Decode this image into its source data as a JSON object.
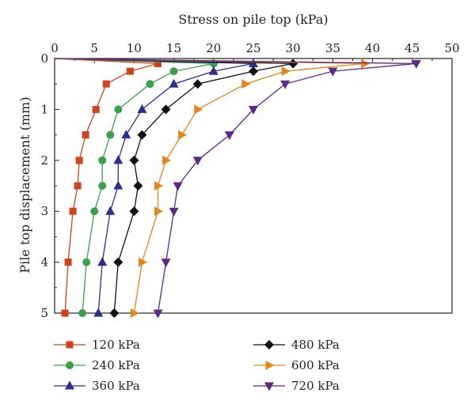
{
  "chart_data": {
    "type": "line",
    "title": "",
    "xlabel": "Stress on pile top (kPa)",
    "ylabel": "Pile top displacement (mm)",
    "xlim": [
      0,
      50
    ],
    "ylim": [
      0,
      5
    ],
    "x_axis_position": "top",
    "y_inverted": true,
    "x_ticks": [
      0,
      5,
      10,
      15,
      20,
      25,
      30,
      35,
      40,
      45,
      50
    ],
    "y_ticks": [
      0,
      1,
      2,
      3,
      4,
      5
    ],
    "grid": false,
    "legend_placement": "bottom, two columns",
    "series": [
      {
        "name": "120 kPa",
        "color": "#d4401b",
        "marker": "square",
        "points": [
          [
            0,
            0
          ],
          [
            13,
            0.1
          ],
          [
            9.5,
            0.25
          ],
          [
            6.5,
            0.5
          ],
          [
            5.2,
            1.0
          ],
          [
            3.9,
            1.5
          ],
          [
            3.1,
            2.0
          ],
          [
            2.9,
            2.5
          ],
          [
            2.3,
            3.0
          ],
          [
            1.7,
            4.0
          ],
          [
            1.3,
            5.0
          ]
        ]
      },
      {
        "name": "240 kPa",
        "color": "#3aa14a",
        "marker": "circle",
        "points": [
          [
            0,
            0
          ],
          [
            20,
            0.1
          ],
          [
            15,
            0.25
          ],
          [
            12,
            0.5
          ],
          [
            8,
            1.0
          ],
          [
            7,
            1.5
          ],
          [
            6,
            2.0
          ],
          [
            6,
            2.5
          ],
          [
            5,
            3.0
          ],
          [
            4,
            4.0
          ],
          [
            3.5,
            5.0
          ]
        ]
      },
      {
        "name": "360 kPa",
        "color": "#2c2e8f",
        "marker": "triangle-up",
        "points": [
          [
            0,
            0
          ],
          [
            25,
            0.1
          ],
          [
            20,
            0.25
          ],
          [
            15,
            0.5
          ],
          [
            11,
            1.0
          ],
          [
            9,
            1.5
          ],
          [
            8,
            2.0
          ],
          [
            8,
            2.5
          ],
          [
            7,
            3.0
          ],
          [
            6,
            4.0
          ],
          [
            5.5,
            5.0
          ]
        ]
      },
      {
        "name": "480 kPa",
        "color": "#111111",
        "marker": "diamond",
        "points": [
          [
            0,
            0
          ],
          [
            30,
            0.1
          ],
          [
            25,
            0.25
          ],
          [
            18,
            0.5
          ],
          [
            14,
            1.0
          ],
          [
            11,
            1.5
          ],
          [
            10,
            2.0
          ],
          [
            10.5,
            2.5
          ],
          [
            10,
            3.0
          ],
          [
            8,
            4.0
          ],
          [
            7.5,
            5.0
          ]
        ]
      },
      {
        "name": "600 kPa",
        "color": "#e8851a",
        "marker": "triangle-right",
        "points": [
          [
            0,
            0
          ],
          [
            39,
            0.1
          ],
          [
            29,
            0.25
          ],
          [
            24,
            0.5
          ],
          [
            18,
            1.0
          ],
          [
            16,
            1.5
          ],
          [
            14,
            2.0
          ],
          [
            13,
            2.5
          ],
          [
            13,
            3.0
          ],
          [
            11,
            4.0
          ],
          [
            10,
            5.0
          ]
        ]
      },
      {
        "name": "720 kPa",
        "color": "#5b2a86",
        "marker": "triangle-down",
        "points": [
          [
            0,
            0
          ],
          [
            45.5,
            0.1
          ],
          [
            35,
            0.25
          ],
          [
            29,
            0.5
          ],
          [
            25,
            1.0
          ],
          [
            22,
            1.5
          ],
          [
            18,
            2.0
          ],
          [
            15.5,
            2.5
          ],
          [
            15,
            3.0
          ],
          [
            14,
            4.0
          ],
          [
            13,
            5.0
          ]
        ]
      }
    ]
  }
}
